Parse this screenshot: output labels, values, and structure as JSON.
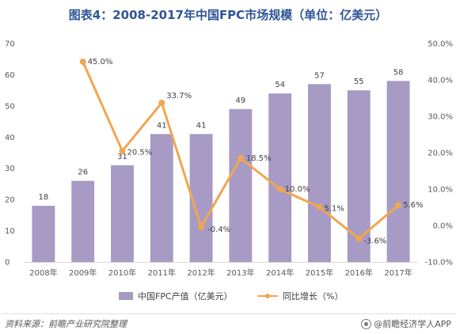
{
  "title": "图表4：2008-2017年中国FPC市场规模（单位：亿美元）",
  "legend": {
    "bar_label": "中国FPC产值（亿美元）",
    "line_label": "同比增长（%）"
  },
  "footer": {
    "source": "资料来源：前瞻产业研究院整理",
    "brand": "@前瞻经济学人APP"
  },
  "colors": {
    "bar": "#a79ac4",
    "line": "#f0a650"
  },
  "chart_data": {
    "type": "bar",
    "categories": [
      "2008年",
      "2009年",
      "2010年",
      "2011年",
      "2012年",
      "2013年",
      "2014年",
      "2015年",
      "2016年",
      "2017年"
    ],
    "series": [
      {
        "name": "中国FPC产值（亿美元）",
        "type": "bar",
        "axis": "left",
        "values": [
          18,
          26,
          31,
          41,
          41,
          49,
          54,
          57,
          55,
          58
        ],
        "labels": [
          "18",
          "26",
          "31",
          "41",
          "41",
          "49",
          "54",
          "57",
          "55",
          "58"
        ]
      },
      {
        "name": "同比增长（%）",
        "type": "line",
        "axis": "right",
        "values": [
          null,
          45.0,
          20.5,
          33.7,
          -0.4,
          18.5,
          10.0,
          5.1,
          -3.6,
          5.6
        ],
        "labels": [
          "",
          "45.0%",
          "20.5%",
          "33.7%",
          "-0.4%",
          "18.5%",
          "10.0%",
          "5.1%",
          "-3.6%",
          "5.6%"
        ]
      }
    ],
    "y_left": {
      "min": 0,
      "max": 70,
      "ticks": [
        0,
        10,
        20,
        30,
        40,
        50,
        60,
        70
      ],
      "tick_labels": [
        "0",
        "10",
        "20",
        "30",
        "40",
        "50",
        "60",
        "70"
      ]
    },
    "y_right": {
      "min": -10,
      "max": 50,
      "ticks": [
        -10,
        0,
        10,
        20,
        30,
        40,
        50
      ],
      "tick_labels": [
        "-10.0%",
        "0.0%",
        "10.0%",
        "20.0%",
        "30.0%",
        "40.0%",
        "50.0%"
      ]
    },
    "grid": false,
    "legend_position": "bottom"
  }
}
